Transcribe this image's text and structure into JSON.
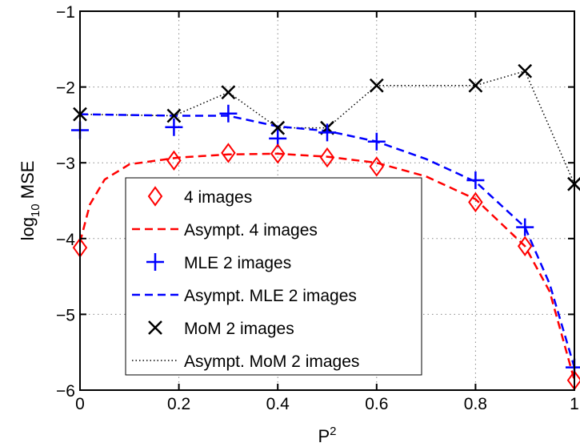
{
  "chart_data": {
    "type": "line",
    "xlabel": "P",
    "xlabel_superscript": "2",
    "ylabel_prefix": "log",
    "ylabel_subscript": "10",
    "ylabel_suffix": " MSE",
    "xlim": [
      0,
      1
    ],
    "ylim": [
      -6,
      -1
    ],
    "xticks": [
      "0",
      "0.2",
      "0.4",
      "0.6",
      "0.8",
      "1"
    ],
    "yticks": [
      "−6",
      "−5",
      "−4",
      "−3",
      "−2",
      "−1"
    ],
    "grid": true,
    "legend_position": "bottom-left",
    "series": [
      {
        "name": "4 images",
        "marker": "diamond",
        "color": "#ff0000",
        "points": [
          [
            0.0,
            -4.12
          ],
          [
            0.19,
            -2.97
          ],
          [
            0.3,
            -2.87
          ],
          [
            0.4,
            -2.88
          ],
          [
            0.5,
            -2.93
          ],
          [
            0.6,
            -3.05
          ],
          [
            0.8,
            -3.52
          ],
          [
            0.9,
            -4.1
          ],
          [
            1.0,
            -5.87
          ]
        ]
      },
      {
        "name": "Asympt. 4 images",
        "line": "dashed",
        "color": "#ff0000",
        "points": [
          [
            0.0,
            -4.05
          ],
          [
            0.02,
            -3.55
          ],
          [
            0.05,
            -3.22
          ],
          [
            0.1,
            -3.02
          ],
          [
            0.2,
            -2.93
          ],
          [
            0.3,
            -2.89
          ],
          [
            0.4,
            -2.88
          ],
          [
            0.5,
            -2.92
          ],
          [
            0.6,
            -3.0
          ],
          [
            0.7,
            -3.18
          ],
          [
            0.8,
            -3.48
          ],
          [
            0.9,
            -4.1
          ],
          [
            0.95,
            -4.7
          ],
          [
            1.0,
            -5.87
          ]
        ]
      },
      {
        "name": "MLE 2 images",
        "marker": "plus",
        "color": "#0000ff",
        "points": [
          [
            0.0,
            -2.57
          ],
          [
            0.19,
            -2.53
          ],
          [
            0.3,
            -2.35
          ],
          [
            0.4,
            -2.68
          ],
          [
            0.5,
            -2.6
          ],
          [
            0.6,
            -2.72
          ],
          [
            0.8,
            -3.23
          ],
          [
            0.9,
            -3.85
          ],
          [
            1.0,
            -5.7
          ]
        ]
      },
      {
        "name": "Asympt. MLE 2 images",
        "line": "dashed",
        "color": "#0000ff",
        "points": [
          [
            0.0,
            -2.36
          ],
          [
            0.1,
            -2.37
          ],
          [
            0.2,
            -2.38
          ],
          [
            0.3,
            -2.38
          ],
          [
            0.4,
            -2.52
          ],
          [
            0.5,
            -2.58
          ],
          [
            0.6,
            -2.72
          ],
          [
            0.7,
            -2.95
          ],
          [
            0.8,
            -3.25
          ],
          [
            0.9,
            -3.85
          ],
          [
            0.95,
            -4.6
          ],
          [
            1.0,
            -5.7
          ]
        ]
      },
      {
        "name": "MoM 2 images",
        "marker": "x",
        "color": "#000000",
        "points": [
          [
            0.0,
            -2.36
          ],
          [
            0.19,
            -2.38
          ],
          [
            0.3,
            -2.07
          ],
          [
            0.4,
            -2.54
          ],
          [
            0.5,
            -2.54
          ],
          [
            0.6,
            -1.98
          ],
          [
            0.8,
            -1.98
          ],
          [
            0.9,
            -1.79
          ],
          [
            1.0,
            -3.28
          ]
        ]
      },
      {
        "name": "Asympt. MoM 2 images",
        "line": "dotted",
        "color": "#000000",
        "points": [
          [
            0.0,
            -2.36
          ],
          [
            0.19,
            -2.38
          ],
          [
            0.3,
            -2.07
          ],
          [
            0.4,
            -2.54
          ],
          [
            0.5,
            -2.54
          ],
          [
            0.6,
            -1.98
          ],
          [
            0.8,
            -1.98
          ],
          [
            0.9,
            -1.79
          ],
          [
            1.0,
            -3.28
          ]
        ]
      }
    ]
  }
}
